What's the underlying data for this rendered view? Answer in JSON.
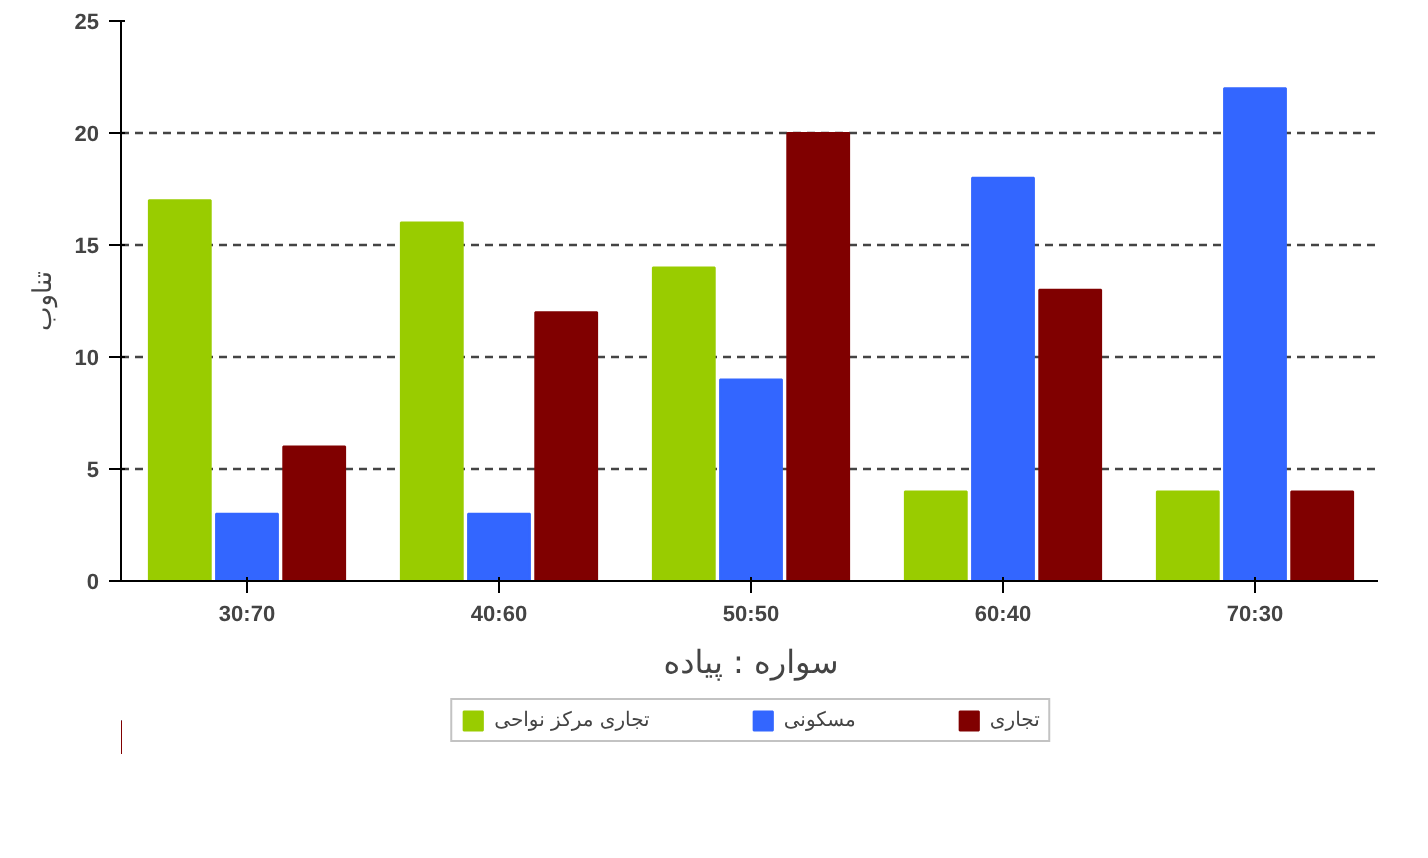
{
  "chart_data": {
    "type": "bar",
    "xlabel": "سواره : پیاده",
    "ylabel": "تناوب",
    "categories": [
      "30:70",
      "40:60",
      "50:50",
      "60:40",
      "70:30"
    ],
    "series": [
      {
        "name": "تجاری مرکز نواحی",
        "color": "#99cc00",
        "values": [
          17,
          16,
          14,
          4,
          4
        ]
      },
      {
        "name": "مسکونی",
        "color": "#3366ff",
        "values": [
          3,
          3,
          9,
          18,
          22
        ]
      },
      {
        "name": "تجاری",
        "color": "#800000",
        "values": [
          6,
          12,
          20,
          13,
          4
        ]
      }
    ],
    "ylim": [
      0,
      25
    ],
    "yticks": [
      0,
      5,
      10,
      15,
      20,
      25
    ],
    "grid": "y",
    "legend": "bottom"
  }
}
